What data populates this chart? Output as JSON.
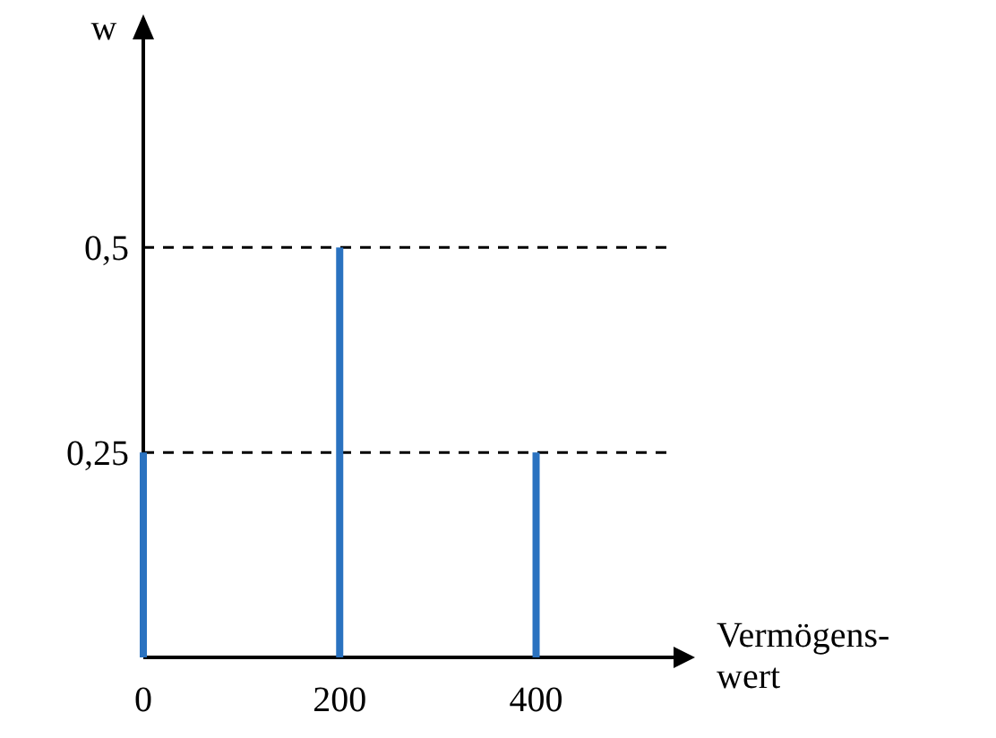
{
  "chart_data": {
    "type": "bar",
    "x": [
      0,
      200,
      400
    ],
    "values": [
      0.25,
      0.5,
      0.25
    ],
    "color": "#2a72c0",
    "xlim": [
      0,
      540
    ],
    "ylim": [
      0,
      0.78
    ],
    "xticks": [
      0,
      200,
      400
    ],
    "yticks": [
      {
        "value": 0.25,
        "label": "0,25"
      },
      {
        "value": 0.5,
        "label": "0,5"
      }
    ],
    "xlabel": "Vermögens-\nwert",
    "ylabel": "w",
    "ref_lines": [
      {
        "axis": "y",
        "value": 0.5,
        "line_style": "dashed",
        "color": "#000000"
      },
      {
        "axis": "y",
        "value": 0.25,
        "line_style": "dashed",
        "color": "#000000"
      }
    ]
  }
}
